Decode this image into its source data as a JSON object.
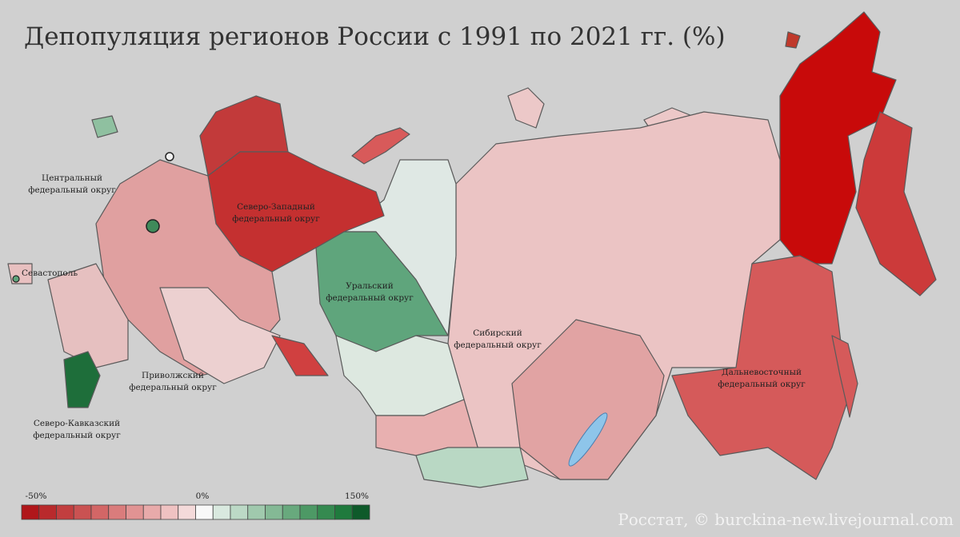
{
  "title": "Депопуляция регионов России с 1991 по 2021 гг. (%)",
  "districts": [
    {
      "lines": [
        "Центральный",
        "федеральный округ"
      ]
    },
    {
      "lines": [
        "Северо-Западный",
        "федеральный округ"
      ]
    },
    {
      "lines": [
        "Уральский",
        "федеральный округ"
      ]
    },
    {
      "lines": [
        "Сибирский",
        "федеральный округ"
      ]
    },
    {
      "lines": [
        "Дальневосточный",
        "федеральный округ"
      ]
    },
    {
      "lines": [
        "Приволжский",
        "федеральный округ"
      ]
    },
    {
      "lines": [
        "Северо-Кавказский",
        "федеральный округ"
      ]
    }
  ],
  "cities": [
    "Севастополь"
  ],
  "legend": {
    "min_label": "-50%",
    "mid_label": "0%",
    "max_label": "150%"
  },
  "source": "Росстат, © burckina-new.livejournal.com"
}
